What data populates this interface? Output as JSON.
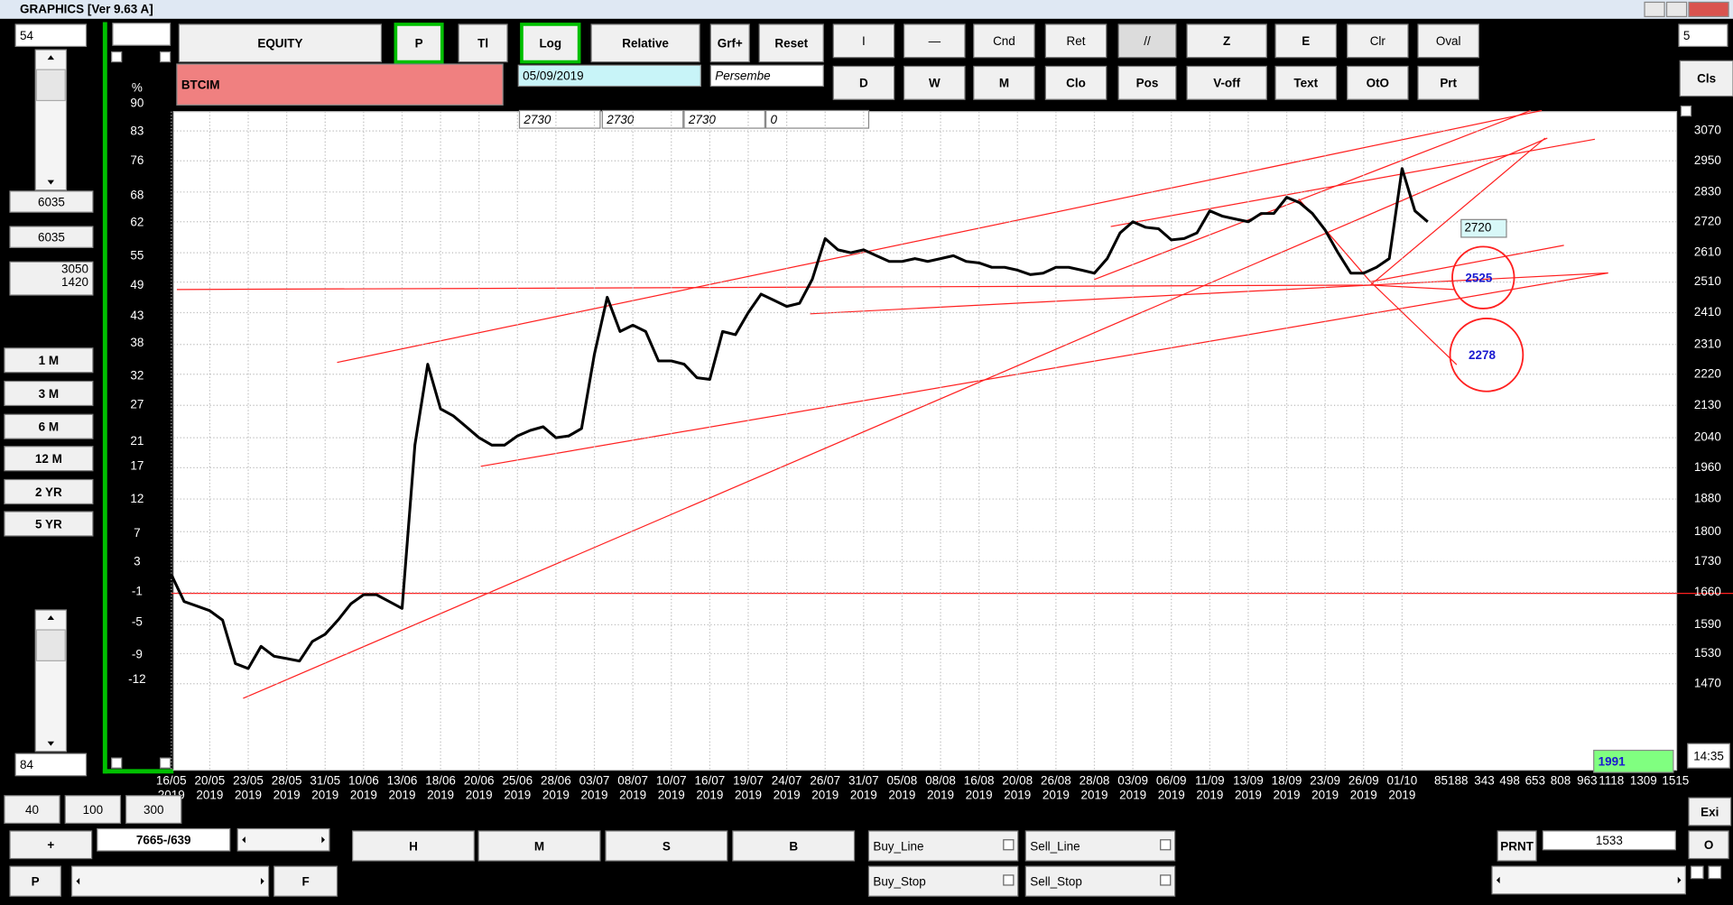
{
  "window": {
    "title": "GRAPHICS  [Ver 9.63 A]"
  },
  "left_panel": {
    "top_input": "54",
    "field_1": "6035",
    "field_2": "6035",
    "range_high": "3050",
    "range_low": "1420",
    "period_buttons": [
      "1 M",
      "3 M",
      "6 M",
      "12 M",
      "2 YR",
      "5 YR"
    ],
    "bottom_input": "84"
  },
  "toolbar": {
    "row_1": [
      "EQUITY",
      "P",
      "Tl",
      "Log",
      "Relative",
      "Grf+",
      "Reset",
      "I",
      "—",
      "Cnd",
      "Ret",
      "//",
      "Z",
      "E",
      "Clr",
      "Oval"
    ],
    "row_2": [
      "D",
      "W",
      "M",
      "Clo",
      "Pos",
      "V-off",
      "Text",
      "OtO",
      "Prt"
    ],
    "close": "Cls",
    "spinner": "5"
  },
  "symbol": "BTCIM",
  "date": "05/09/2019",
  "weekday": "Persembe",
  "header_fields": [
    "2730",
    "2730",
    "2730",
    "0"
  ],
  "chart_data": {
    "type": "line",
    "log_scale": true,
    "grid": true,
    "color": "#000000",
    "ylim": [
      1310,
      3150
    ],
    "yticks": [
      3070,
      2950,
      2830,
      2720,
      2610,
      2510,
      2410,
      2310,
      2220,
      2130,
      2040,
      1960,
      1880,
      1800,
      1730,
      1660,
      1590,
      1530,
      1470
    ],
    "y2_label": "%",
    "y2lim": [
      -22,
      88
    ],
    "y2ticks": [
      90,
      83,
      76,
      68,
      62,
      55,
      49,
      43,
      38,
      32,
      27,
      21,
      17,
      12,
      7,
      3,
      -1,
      -5,
      -9,
      -12
    ],
    "x_labels": [
      [
        "16/05",
        "2019"
      ],
      [
        "20/05",
        "2019"
      ],
      [
        "23/05",
        "2019"
      ],
      [
        "28/05",
        "2019"
      ],
      [
        "31/05",
        "2019"
      ],
      [
        "10/06",
        "2019"
      ],
      [
        "13/06",
        "2019"
      ],
      [
        "18/06",
        "2019"
      ],
      [
        "20/06",
        "2019"
      ],
      [
        "25/06",
        "2019"
      ],
      [
        "28/06",
        "2019"
      ],
      [
        "03/07",
        "2019"
      ],
      [
        "08/07",
        "2019"
      ],
      [
        "10/07",
        "2019"
      ],
      [
        "16/07",
        "2019"
      ],
      [
        "19/07",
        "2019"
      ],
      [
        "24/07",
        "2019"
      ],
      [
        "26/07",
        "2019"
      ],
      [
        "31/07",
        "2019"
      ],
      [
        "05/08",
        "2019"
      ],
      [
        "08/08",
        "2019"
      ],
      [
        "16/08",
        "2019"
      ],
      [
        "20/08",
        "2019"
      ],
      [
        "26/08",
        "2019"
      ],
      [
        "28/08",
        "2019"
      ],
      [
        "03/09",
        "2019"
      ],
      [
        "06/09",
        "2019"
      ],
      [
        "11/09",
        "2019"
      ],
      [
        "13/09",
        "2019"
      ],
      [
        "18/09",
        "2019"
      ],
      [
        "23/09",
        "2019"
      ],
      [
        "26/09",
        "2019"
      ],
      [
        "01/10",
        "2019"
      ]
    ],
    "x_extra_labels": [
      "85188",
      "343",
      "498",
      "653",
      "808",
      "963",
      "1118",
      "1309",
      "1515"
    ],
    "values": [
      1700,
      1640,
      1630,
      1620,
      1600,
      1510,
      1500,
      1545,
      1525,
      1520,
      1515,
      1555,
      1570,
      1600,
      1635,
      1655,
      1655,
      1640,
      1625,
      2020,
      2250,
      2120,
      2100,
      2070,
      2040,
      2020,
      2020,
      2045,
      2060,
      2070,
      2040,
      2045,
      2065,
      2280,
      2460,
      2350,
      2370,
      2350,
      2260,
      2260,
      2250,
      2210,
      2205,
      2350,
      2340,
      2410,
      2470,
      2450,
      2430,
      2440,
      2520,
      2660,
      2620,
      2610,
      2620,
      2600,
      2580,
      2580,
      2590,
      2580,
      2590,
      2600,
      2580,
      2575,
      2560,
      2560,
      2550,
      2535,
      2540,
      2560,
      2560,
      2550,
      2540,
      2590,
      2680,
      2720,
      2700,
      2695,
      2655,
      2660,
      2680,
      2760,
      2740,
      2730,
      2720,
      2750,
      2750,
      2810,
      2790,
      2750,
      2690,
      2610,
      2540,
      2540,
      2560,
      2590,
      2920,
      2760,
      2720
    ],
    "last_price": 2720,
    "targets": [
      2525,
      2278
    ]
  },
  "status": {
    "counter": "1991",
    "time": "14:35"
  },
  "bottom": {
    "zoom_buttons": [
      "40",
      "100",
      "300"
    ],
    "plus": "+",
    "position": "7665-/639",
    "hms_buttons": [
      "H",
      "M",
      "S",
      "B"
    ],
    "p": "P",
    "f": "F",
    "orders": [
      "Buy_Line",
      "Sell_Line",
      "Buy_Stop",
      "Sell_Stop"
    ],
    "print": "PRNT",
    "print_field": "1533",
    "exit": "Exi",
    "o": "O"
  }
}
